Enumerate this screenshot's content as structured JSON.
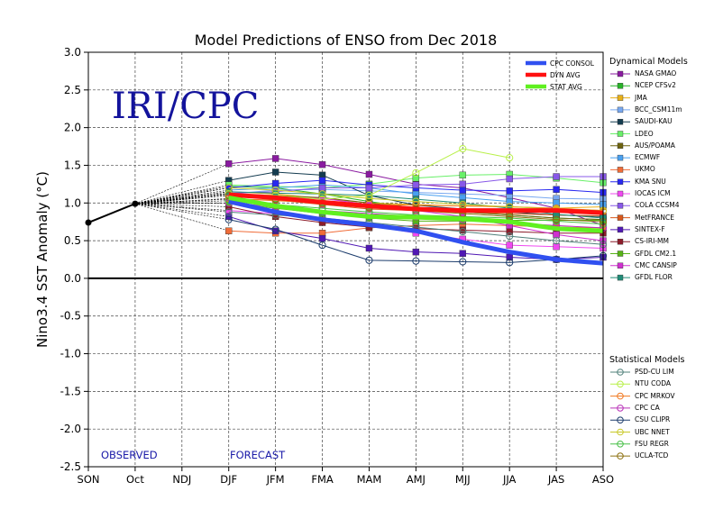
{
  "title": "Model Predictions of ENSO from Dec 2018",
  "watermark": "IRI/CPC",
  "labels": {
    "observed": "OBSERVED",
    "forecast": "FORECAST"
  },
  "legend_titles": {
    "dynamical": "Dynamical Models",
    "statistical": "Statistical Models"
  },
  "chart_data": {
    "type": "line",
    "title": "Model Predictions of ENSO from Dec 2018",
    "xlabel": "",
    "ylabel": "Nino3.4 SST Anomaly (°C)",
    "categories": [
      "SON",
      "Oct",
      "NDJ",
      "DJF",
      "JFM",
      "FMA",
      "MAM",
      "AMJ",
      "MJJ",
      "JJA",
      "JAS",
      "ASO"
    ],
    "ylim": [
      -2.5,
      3.0
    ],
    "yticks": [
      "-2.5",
      "-2.0",
      "-1.5",
      "-1.0",
      "-0.5",
      "0.0",
      "0.5",
      "1.0",
      "1.5",
      "2.0",
      "2.5",
      "3.0"
    ],
    "grid": true,
    "observed": {
      "x": [
        "SON",
        "Oct"
      ],
      "values": [
        0.74,
        0.99
      ]
    },
    "consensus": [
      {
        "name": "CPC CONSOL",
        "color": "#3050f0",
        "values": [
          1.02,
          0.88,
          0.78,
          0.71,
          0.63,
          0.48,
          0.35,
          0.25,
          0.2
        ]
      },
      {
        "name": "DYN AVG",
        "color": "#ff1010",
        "values": [
          1.11,
          1.07,
          1.01,
          0.96,
          0.92,
          0.9,
          0.9,
          0.9,
          0.87
        ]
      },
      {
        "name": "STAT AVG",
        "color": "#60f020",
        "values": [
          1.07,
          0.96,
          0.88,
          0.82,
          0.81,
          0.79,
          0.75,
          0.66,
          0.63
        ]
      }
    ],
    "dynamical": [
      {
        "name": "NASA GMAO",
        "color": "#8a1aa0",
        "values": [
          1.52,
          1.59,
          1.51,
          1.38,
          1.25,
          1.2,
          1.07,
          0.93,
          0.7
        ]
      },
      {
        "name": "NCEP CFSv2",
        "color": "#28b428",
        "values": [
          1.22,
          1.2,
          1.12,
          1.02,
          0.93,
          0.88,
          0.84,
          0.8,
          0.78
        ]
      },
      {
        "name": "JMA",
        "color": "#e8b018",
        "values": [
          1.15,
          1.12,
          1.06,
          1.0,
          0.98,
          0.96,
          0.95,
          0.93,
          0.95
        ]
      },
      {
        "name": "BCC_CSM11m",
        "color": "#78a8f0",
        "values": [
          1.12,
          1.17,
          1.18,
          1.16,
          1.14,
          1.12,
          1.1,
          1.06,
          1.05
        ]
      },
      {
        "name": "SAUDI-KAU",
        "color": "#143c50",
        "values": [
          1.3,
          1.41,
          1.37,
          1.1,
          0.97,
          0.92,
          0.88,
          0.84,
          0.82
        ]
      },
      {
        "name": "LDEO",
        "color": "#68f068",
        "values": [
          1.24,
          1.22,
          1.2,
          1.25,
          1.33,
          1.37,
          1.38,
          1.33,
          1.27
        ]
      },
      {
        "name": "AUS/POAMA",
        "color": "#6e6410",
        "values": [
          1.12,
          1.1,
          1.07,
          1.0,
          0.93,
          0.88,
          0.84,
          0.8,
          0.78
        ]
      },
      {
        "name": "ECMWF",
        "color": "#48a0f0",
        "values": [
          1.17,
          1.2,
          1.24,
          1.2,
          1.12,
          1.07,
          1.02,
          1.0,
          0.98
        ]
      },
      {
        "name": "UKMO",
        "color": "#f06c38",
        "values": [
          0.63,
          0.6,
          0.6,
          0.67,
          0.7,
          0.72,
          0.7,
          0.68,
          0.67
        ]
      },
      {
        "name": "KMA SNU",
        "color": "#2828f0",
        "values": [
          1.2,
          1.26,
          1.3,
          1.24,
          1.2,
          1.17,
          1.16,
          1.18,
          1.14
        ]
      },
      {
        "name": "IOCAS ICM",
        "color": "#f048f0",
        "values": [
          0.9,
          0.86,
          0.77,
          0.7,
          0.6,
          0.52,
          0.44,
          0.42,
          0.4
        ]
      },
      {
        "name": "COLA CCSM4",
        "color": "#8858e8",
        "values": [
          1.13,
          1.15,
          1.2,
          1.2,
          1.24,
          1.25,
          1.32,
          1.35,
          1.35
        ]
      },
      {
        "name": "MetFRANCE",
        "color": "#d8581c",
        "values": [
          1.05,
          1.04,
          0.98,
          0.92,
          0.9,
          0.88,
          0.86,
          0.84,
          0.83
        ]
      },
      {
        "name": "SINTEX-F",
        "color": "#5018b4",
        "values": [
          0.82,
          0.63,
          0.53,
          0.4,
          0.35,
          0.33,
          0.28,
          0.25,
          0.28
        ]
      },
      {
        "name": "CS-IRI-MM",
        "color": "#8c1c2a",
        "values": [
          0.95,
          0.82,
          0.74,
          0.68,
          0.66,
          0.64,
          0.62,
          0.6,
          0.6
        ]
      },
      {
        "name": "GFDL CM2.1",
        "color": "#58b418",
        "values": [
          1.0,
          0.93,
          0.86,
          0.8,
          0.76,
          0.76,
          0.77,
          0.77,
          0.77
        ]
      },
      {
        "name": "CMC CANSIP",
        "color": "#d030d0",
        "values": [
          1.1,
          1.07,
          1.06,
          0.98,
          0.9,
          0.82,
          0.7,
          0.58,
          0.5
        ]
      },
      {
        "name": "GFDL FLOR",
        "color": "#208c78",
        "values": [
          1.15,
          1.13,
          1.12,
          1.1,
          1.05,
          1.0,
          0.93,
          0.85,
          0.8
        ]
      }
    ],
    "statistical": [
      {
        "name": "PSD-CU LIM",
        "color": "#50807a",
        "values": [
          0.88,
          0.84,
          0.8,
          0.74,
          0.68,
          0.62,
          0.56,
          0.5,
          0.45
        ]
      },
      {
        "name": "NTU CODA",
        "color": "#b8f048",
        "values": [
          1.12,
          1.1,
          1.05,
          1.1,
          1.4,
          1.72,
          1.6,
          null,
          null
        ]
      },
      {
        "name": "CPC MRKOV",
        "color": "#f07820",
        "values": [
          1.06,
          1.03,
          1.0,
          0.98,
          0.97,
          0.96,
          0.95,
          0.93,
          0.9
        ]
      },
      {
        "name": "CPC CA",
        "color": "#b830b8",
        "values": [
          1.0,
          0.95,
          0.9,
          0.86,
          0.82,
          0.78,
          0.74,
          0.7,
          0.67
        ]
      },
      {
        "name": "CSU CLIPR",
        "color": "#1c3c6c",
        "values": [
          0.78,
          0.65,
          0.44,
          0.24,
          0.23,
          0.22,
          0.21,
          0.25,
          0.3
        ]
      },
      {
        "name": "UBC NNET",
        "color": "#c8c828",
        "values": [
          1.2,
          1.17,
          1.12,
          1.06,
          1.02,
          0.98,
          0.95,
          0.92,
          0.9
        ]
      },
      {
        "name": "FSU REGR",
        "color": "#48c048",
        "values": [
          1.03,
          0.98,
          0.93,
          0.88,
          0.84,
          0.82,
          0.8,
          0.76,
          0.72
        ]
      },
      {
        "name": "UCLA-TCD",
        "color": "#8c7010",
        "values": [
          1.1,
          1.05,
          1.0,
          0.94,
          0.9,
          0.86,
          0.82,
          0.78,
          0.75
        ]
      }
    ]
  }
}
